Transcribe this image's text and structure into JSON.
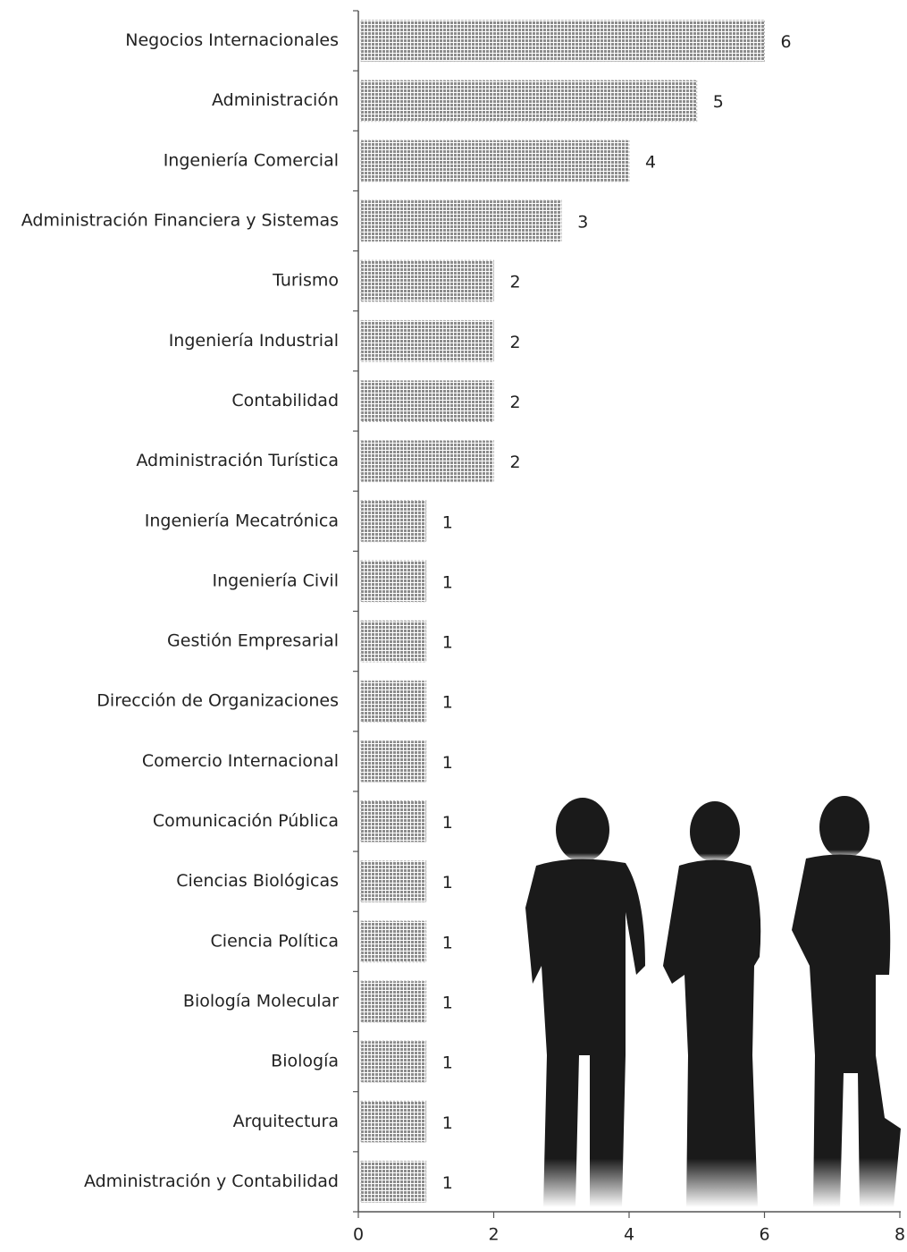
{
  "chart_data": {
    "type": "bar",
    "orientation": "horizontal",
    "categories": [
      "Negocios Internacionales",
      "Administración",
      "Ingeniería Comercial",
      "Administración Financiera y Sistemas",
      "Turismo",
      "Ingeniería Industrial",
      "Contabilidad",
      "Administración Turística",
      "Ingeniería Mecatrónica",
      "Ingeniería Civil",
      "Gestión Empresarial",
      "Dirección de Organizaciones",
      "Comercio Internacional",
      "Comunicación Pública",
      "Ciencias Biológicas",
      "Ciencia Política",
      "Biología Molecular",
      "Biología",
      "Arquitectura",
      "Administración y Contabilidad"
    ],
    "values": [
      6,
      5,
      4,
      3,
      2,
      2,
      2,
      2,
      1,
      1,
      1,
      1,
      1,
      1,
      1,
      1,
      1,
      1,
      1,
      1
    ],
    "color": "#8c8c8c",
    "xlim": [
      0,
      8
    ],
    "xticks": [
      0,
      2,
      4,
      6,
      8
    ]
  }
}
